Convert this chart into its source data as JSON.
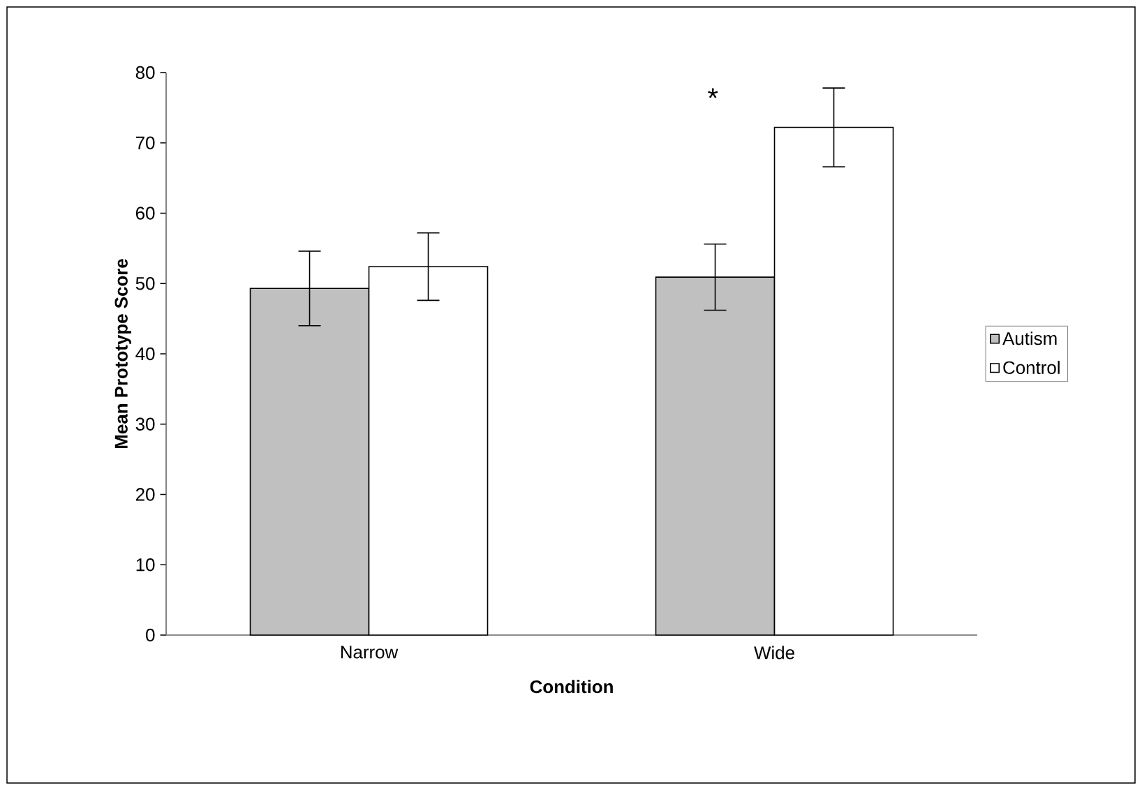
{
  "chart_data": {
    "type": "bar",
    "xlabel": "Condition",
    "ylabel": "Mean Prototype Score",
    "categories": [
      "Narrow",
      "Wide"
    ],
    "series": [
      {
        "name": "Autism",
        "color": "#c0c0c0",
        "values": [
          49.3,
          50.9
        ],
        "errors": [
          5.3,
          4.7
        ]
      },
      {
        "name": "Control",
        "color": "#ffffff",
        "values": [
          52.4,
          72.2
        ],
        "errors": [
          4.8,
          5.6
        ]
      }
    ],
    "ylim": [
      0,
      80
    ],
    "yticks": [
      0,
      10,
      20,
      30,
      40,
      50,
      60,
      70,
      80
    ],
    "legend": "right",
    "grid": false,
    "annotations": [
      "*"
    ]
  }
}
